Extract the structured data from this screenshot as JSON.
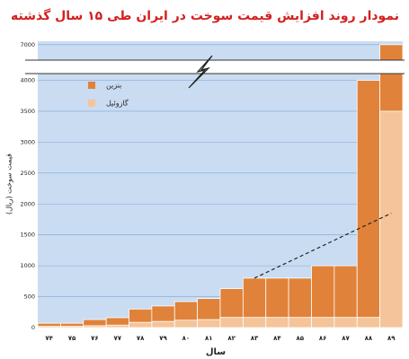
{
  "chart_data": {
    "type": "bar",
    "title": "نمودار روند افزایش قیمت سوخت در ایران طی ۱۵ سال گذشته",
    "x_label": "سال",
    "y_label": "قیمت سوخت (ریال)",
    "categories": [
      "۷۴",
      "۷۵",
      "۷۶",
      "۷۷",
      "۷۸",
      "۷۹",
      "۸۰",
      "۸۱",
      "۸۲",
      "۸۳",
      "۸۴",
      "۸۵",
      "۸۶",
      "۸۷",
      "۸۸",
      "۸۹"
    ],
    "series": [
      {
        "name": "بنزین",
        "color": "#e0823a",
        "values": [
          70,
          70,
          130,
          160,
          300,
          350,
          420,
          470,
          630,
          800,
          800,
          800,
          1000,
          1000,
          4000,
          7000
        ]
      },
      {
        "name": "گازوئیل",
        "color": "#f5c49a",
        "values": [
          20,
          20,
          30,
          40,
          85,
          100,
          120,
          130,
          165,
          165,
          165,
          165,
          165,
          165,
          165,
          3500
        ]
      }
    ],
    "trend": {
      "categories": [
        "۸۳",
        "۸۹"
      ],
      "values": [
        800,
        1850
      ]
    },
    "ylim": [
      0,
      7070
    ],
    "axis_break": [
      4080,
      6720
    ],
    "yticks": [
      0,
      500,
      1000,
      1500,
      2000,
      2500,
      3000,
      3500,
      4000,
      7000
    ],
    "grid": true,
    "legend": "top-left"
  }
}
